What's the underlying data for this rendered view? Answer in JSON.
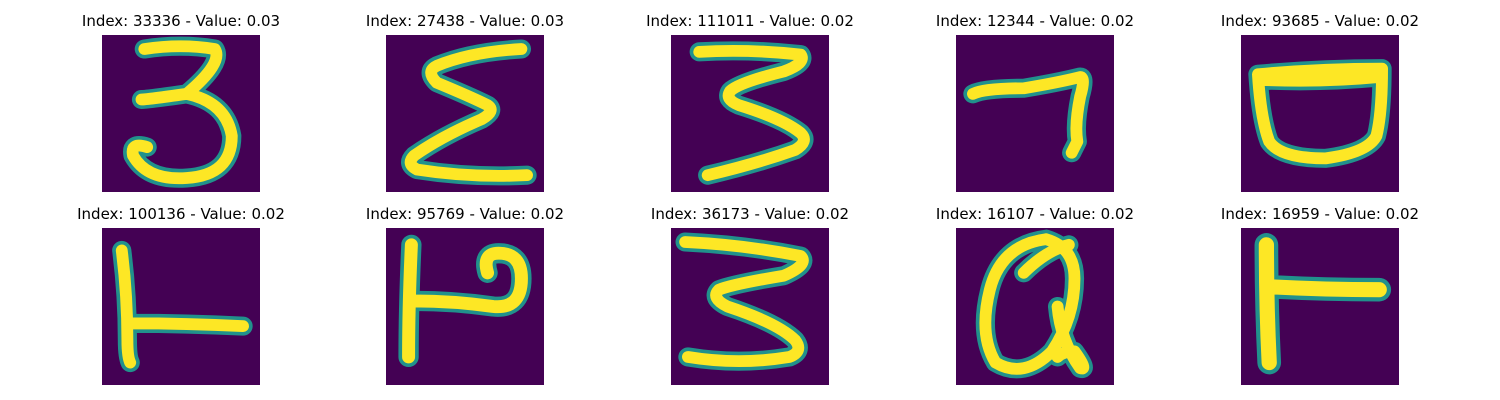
{
  "colors": {
    "background": "#440154",
    "stroke_edge": "#21918c",
    "stroke_core": "#fde725"
  },
  "samples": [
    {
      "title": "Index: 33336 - Value: 0.03",
      "glyph": "3"
    },
    {
      "title": "Index: 27438 - Value: 0.03",
      "glyph": "Σ"
    },
    {
      "title": "Index: 111011 - Value: 0.02",
      "glyph": "3"
    },
    {
      "title": "Index: 12344 - Value: 0.02",
      "glyph": "7"
    },
    {
      "title": "Index: 93685 - Value: 0.02",
      "glyph": "bowl"
    },
    {
      "title": "Index: 100136 - Value: 0.02",
      "glyph": "L"
    },
    {
      "title": "Index: 95769 - Value: 0.02",
      "glyph": "P"
    },
    {
      "title": "Index: 36173 - Value: 0.02",
      "glyph": "3"
    },
    {
      "title": "Index: 16107 - Value: 0.02",
      "glyph": "Q"
    },
    {
      "title": "Index: 16959 - Value: 0.02",
      "glyph": "F"
    }
  ]
}
